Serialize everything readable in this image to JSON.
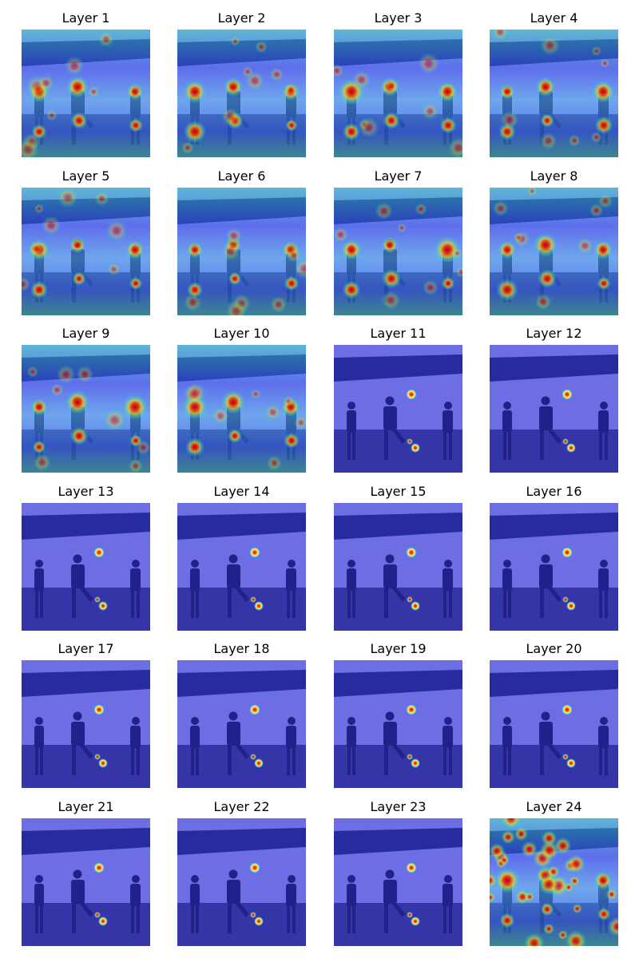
{
  "panels": [
    {
      "title": "Layer 1"
    },
    {
      "title": "Layer 2"
    },
    {
      "title": "Layer 3"
    },
    {
      "title": "Layer 4"
    },
    {
      "title": "Layer 5"
    },
    {
      "title": "Layer 6"
    },
    {
      "title": "Layer 7"
    },
    {
      "title": "Layer 8"
    },
    {
      "title": "Layer 9"
    },
    {
      "title": "Layer 10"
    },
    {
      "title": "Layer 11"
    },
    {
      "title": "Layer 12"
    },
    {
      "title": "Layer 13"
    },
    {
      "title": "Layer 14"
    },
    {
      "title": "Layer 15"
    },
    {
      "title": "Layer 16"
    },
    {
      "title": "Layer 17"
    },
    {
      "title": "Layer 18"
    },
    {
      "title": "Layer 19"
    },
    {
      "title": "Layer 20"
    },
    {
      "title": "Layer 21"
    },
    {
      "title": "Layer 22"
    },
    {
      "title": "Layer 23"
    },
    {
      "title": "Layer 24"
    }
  ]
}
